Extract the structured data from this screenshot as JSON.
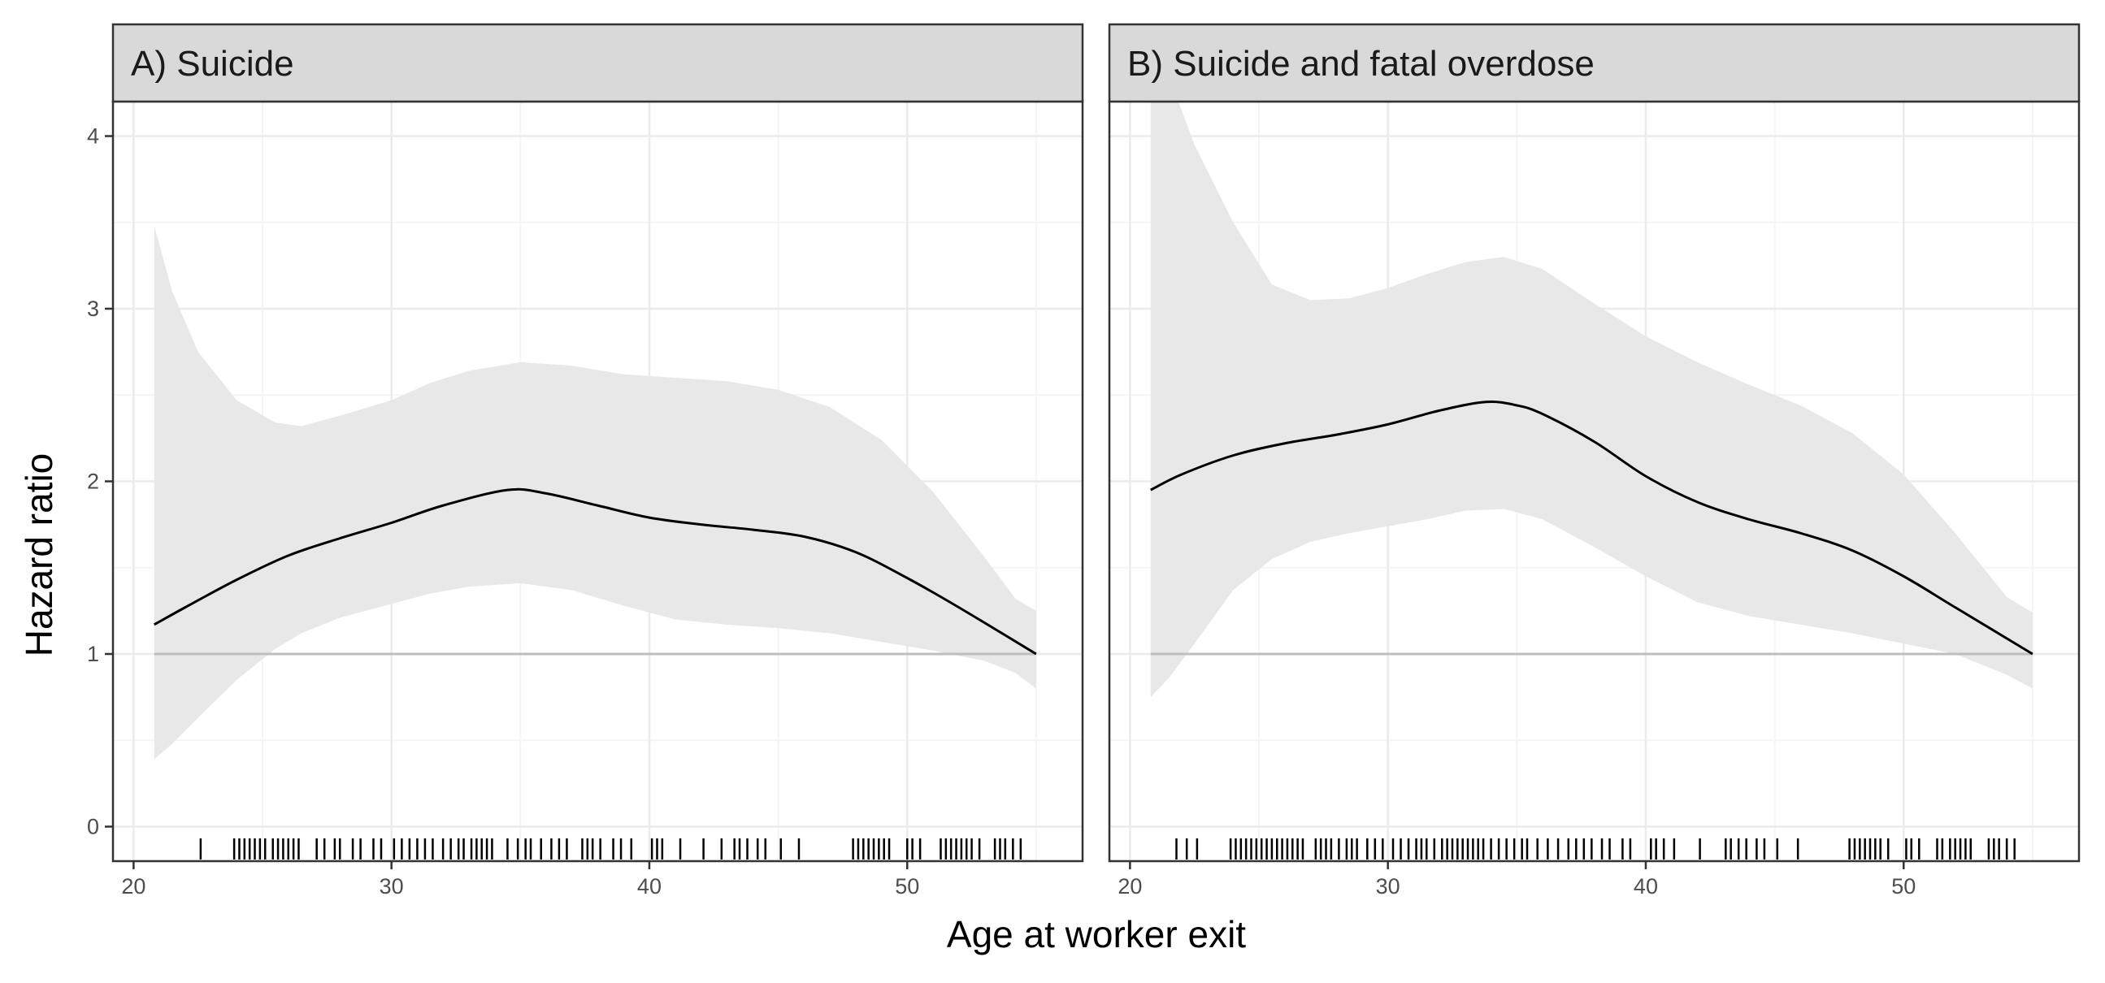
{
  "colors": {
    "panel_background": "#ffffff",
    "strip_fill": "#d9d9d9",
    "border": "#333333",
    "grid_major": "#ebebeb",
    "grid_minor": "#f5f5f5",
    "ribbon": "#e8e8e8",
    "reference_line": "#bebebe",
    "curve": "#000000",
    "rug": "#000000"
  },
  "chart_data": {
    "type": "line",
    "xlabel": "Age at worker exit",
    "ylabel": "Hazard ratio",
    "xlim": [
      19.2,
      56.8
    ],
    "ylim": [
      -0.2,
      4.2
    ],
    "xticks": [
      20,
      30,
      40,
      50
    ],
    "yticks": [
      0,
      1,
      2,
      3,
      4
    ],
    "reference_y": 1,
    "grid": true,
    "legend": "none",
    "panels": [
      {
        "title": "A) Suicide",
        "series": [
          {
            "x": [
              20.8,
              22,
              24,
              26,
              28,
              30,
              32,
              34.5,
              36,
              38,
              40,
              42,
              44,
              46,
              48,
              50,
              52,
              55
            ],
            "values": [
              1.17,
              1.27,
              1.43,
              1.57,
              1.67,
              1.76,
              1.86,
              1.95,
              1.93,
              1.86,
              1.79,
              1.75,
              1.72,
              1.68,
              1.59,
              1.44,
              1.27,
              1.0
            ]
          }
        ],
        "ci_x": [
          20.8,
          21.5,
          22.5,
          24,
          25.5,
          26.5,
          28,
          30,
          31.5,
          33,
          35,
          37,
          39,
          41,
          43,
          45,
          47,
          49,
          51,
          53,
          54.2,
          55
        ],
        "ci_upper": [
          3.48,
          3.1,
          2.75,
          2.47,
          2.34,
          2.32,
          2.38,
          2.47,
          2.57,
          2.64,
          2.69,
          2.67,
          2.62,
          2.6,
          2.58,
          2.53,
          2.43,
          2.24,
          1.94,
          1.56,
          1.32,
          1.25
        ],
        "ci_lower": [
          0.39,
          0.48,
          0.63,
          0.85,
          1.03,
          1.12,
          1.21,
          1.29,
          1.35,
          1.39,
          1.41,
          1.37,
          1.28,
          1.2,
          1.17,
          1.15,
          1.12,
          1.07,
          1.02,
          0.96,
          0.89,
          0.8
        ],
        "rug": [
          22.6,
          23.9,
          24.1,
          24.3,
          24.5,
          24.7,
          24.9,
          25.1,
          25.4,
          25.6,
          25.8,
          26.0,
          26.2,
          26.4,
          27.1,
          27.4,
          27.8,
          28.0,
          28.5,
          28.8,
          29.3,
          29.6,
          30.1,
          30.4,
          30.7,
          31.0,
          31.3,
          31.6,
          32.0,
          32.3,
          32.6,
          32.8,
          33.1,
          33.3,
          33.5,
          33.7,
          33.9,
          34.5,
          34.9,
          35.2,
          35.4,
          35.8,
          36.2,
          36.5,
          36.8,
          37.4,
          37.6,
          37.8,
          38.1,
          38.6,
          38.9,
          39.3,
          40.1,
          40.3,
          40.5,
          41.2,
          42.1,
          42.8,
          43.3,
          43.5,
          43.8,
          44.2,
          44.5,
          45.1,
          45.8,
          47.9,
          48.1,
          48.3,
          48.5,
          48.7,
          48.9,
          49.1,
          49.3,
          50.0,
          50.2,
          50.5,
          51.3,
          51.5,
          51.7,
          51.9,
          52.1,
          52.3,
          52.5,
          52.8,
          53.4,
          53.6,
          53.8,
          54.1,
          54.4
        ]
      },
      {
        "title": "B) Suicide and fatal overdose",
        "series": [
          {
            "x": [
              20.8,
              22,
              24,
              26,
              28,
              30,
              32,
              33.8,
              35,
              36,
              38,
              40,
              42,
              44,
              46,
              48,
              50,
              52,
              55
            ],
            "values": [
              1.95,
              2.04,
              2.15,
              2.22,
              2.27,
              2.33,
              2.41,
              2.46,
              2.44,
              2.39,
              2.23,
              2.03,
              1.88,
              1.78,
              1.7,
              1.6,
              1.45,
              1.27,
              1.0
            ]
          }
        ],
        "ci_x": [
          20.8,
          21.5,
          22.5,
          24,
          25.5,
          27,
          28.5,
          30,
          31.5,
          33,
          34.5,
          36,
          38,
          40,
          42,
          44,
          46,
          48,
          50,
          52,
          54,
          55
        ],
        "ci_upper": [
          4.5,
          4.35,
          3.95,
          3.5,
          3.14,
          3.05,
          3.06,
          3.12,
          3.2,
          3.27,
          3.3,
          3.23,
          3.03,
          2.84,
          2.69,
          2.56,
          2.44,
          2.28,
          2.04,
          1.7,
          1.33,
          1.24
        ],
        "ci_lower": [
          0.75,
          0.86,
          1.06,
          1.37,
          1.55,
          1.65,
          1.7,
          1.74,
          1.78,
          1.83,
          1.84,
          1.78,
          1.62,
          1.45,
          1.3,
          1.22,
          1.17,
          1.12,
          1.06,
          1.0,
          0.88,
          0.8
        ],
        "rug": [
          21.8,
          22.2,
          22.6,
          23.9,
          24.1,
          24.3,
          24.5,
          24.7,
          24.9,
          25.1,
          25.3,
          25.5,
          25.7,
          25.9,
          26.1,
          26.3,
          26.5,
          26.7,
          27.2,
          27.4,
          27.6,
          27.8,
          28.1,
          28.4,
          28.6,
          28.8,
          29.2,
          29.5,
          29.8,
          30.2,
          30.5,
          30.8,
          31.1,
          31.3,
          31.5,
          31.8,
          32.1,
          32.3,
          32.5,
          32.7,
          32.9,
          33.1,
          33.3,
          33.5,
          33.7,
          34.0,
          34.3,
          34.6,
          34.9,
          35.2,
          35.4,
          35.8,
          36.2,
          36.6,
          37.0,
          37.3,
          37.6,
          37.9,
          38.3,
          38.6,
          39.1,
          39.4,
          40.2,
          40.4,
          40.7,
          41.1,
          42.1,
          43.1,
          43.3,
          43.6,
          43.9,
          44.3,
          44.6,
          45.1,
          45.9,
          47.9,
          48.1,
          48.3,
          48.5,
          48.7,
          48.9,
          49.1,
          49.4,
          50.1,
          50.3,
          50.6,
          51.3,
          51.5,
          51.8,
          52.0,
          52.2,
          52.4,
          52.6,
          53.3,
          53.5,
          53.7,
          54.0,
          54.3
        ]
      }
    ]
  }
}
